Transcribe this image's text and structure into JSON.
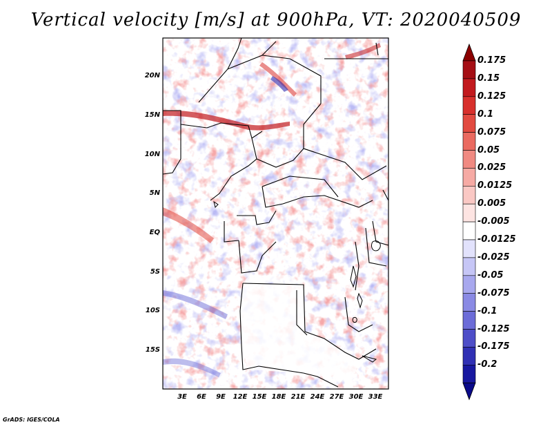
{
  "title": "Vertical velocity [m/s] at 900hPa, VT: 2020040509",
  "credit": "GrADS: IGES/COLA",
  "map": {
    "lat_range": [
      -20,
      25
    ],
    "lon_range": [
      0,
      35
    ],
    "lat_ticks": [
      {
        "value": 20,
        "label": "20N"
      },
      {
        "value": 15,
        "label": "15N"
      },
      {
        "value": 10,
        "label": "10N"
      },
      {
        "value": 5,
        "label": "5N"
      },
      {
        "value": 0,
        "label": "EQ"
      },
      {
        "value": -5,
        "label": "5S"
      },
      {
        "value": -10,
        "label": "10S"
      },
      {
        "value": -15,
        "label": "15S"
      }
    ],
    "lon_ticks": [
      {
        "value": 3,
        "label": "3E"
      },
      {
        "value": 6,
        "label": "6E"
      },
      {
        "value": 9,
        "label": "9E"
      },
      {
        "value": 12,
        "label": "12E"
      },
      {
        "value": 15,
        "label": "15E"
      },
      {
        "value": 18,
        "label": "18E"
      },
      {
        "value": 21,
        "label": "21E"
      },
      {
        "value": 24,
        "label": "24E"
      },
      {
        "value": 27,
        "label": "27E"
      },
      {
        "value": 30,
        "label": "30E"
      },
      {
        "value": 33,
        "label": "33E"
      }
    ]
  },
  "colorbar": {
    "levels": [
      {
        "label": "0.175",
        "color": "#a50f15"
      },
      {
        "label": "0.15",
        "color": "#c21a1e"
      },
      {
        "label": "0.125",
        "color": "#d8302c"
      },
      {
        "label": "0.1",
        "color": "#e24a40"
      },
      {
        "label": "0.075",
        "color": "#ea6a60"
      },
      {
        "label": "0.05",
        "color": "#f08a82"
      },
      {
        "label": "0.025",
        "color": "#f6aaa4"
      },
      {
        "label": "0.0125",
        "color": "#fac8c4"
      },
      {
        "label": "0.005",
        "color": "#fde4e2"
      },
      {
        "label": "-0.005",
        "color": "#ffffff"
      },
      {
        "label": "-0.0125",
        "color": "#e2e2fc"
      },
      {
        "label": "-0.025",
        "color": "#c6c6f6"
      },
      {
        "label": "-0.05",
        "color": "#a8a8ee"
      },
      {
        "label": "-0.075",
        "color": "#8a8ae4"
      },
      {
        "label": "-0.1",
        "color": "#6c6cd8"
      },
      {
        "label": "-0.125",
        "color": "#4e4ec8"
      },
      {
        "label": "-0.175",
        "color": "#3030b4"
      },
      {
        "label": "-0.2",
        "color": "#1818a0"
      }
    ],
    "over_color": "#8b0000",
    "under_color": "#0a0a8a"
  }
}
